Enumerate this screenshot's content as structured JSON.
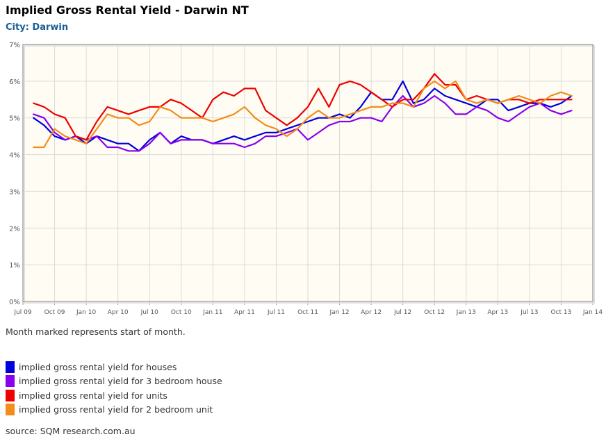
{
  "header": {
    "title": "Implied Gross Rental Yield - Darwin NT",
    "subtitle": "City: Darwin"
  },
  "note": "Month marked represents start of month.",
  "source": "source: SQM research.com.au",
  "chart_data": {
    "type": "line",
    "title": "Implied Gross Rental Yield - Darwin NT",
    "subtitle": "City: Darwin",
    "xlabel": "",
    "ylabel": "",
    "x_ticks": [
      "Jul 09",
      "Oct 09",
      "Jan 10",
      "Apr 10",
      "Jul 10",
      "Oct 10",
      "Jan 11",
      "Apr 11",
      "Jul 11",
      "Oct 11",
      "Jan 12",
      "Apr 12",
      "Jul 12",
      "Oct 12",
      "Jan 13",
      "Apr 13",
      "Jul 13",
      "Oct 13",
      "Jan 14"
    ],
    "y_ticks": [
      "0%",
      "1%",
      "2%",
      "3%",
      "4%",
      "5%",
      "6%",
      "7%"
    ],
    "xlim": [
      "Jul 09",
      "Jan 14"
    ],
    "ylim": [
      0,
      7
    ],
    "grid": true,
    "legend": "bottom",
    "x": [
      "Aug 09",
      "Sep 09",
      "Oct 09",
      "Nov 09",
      "Dec 09",
      "Jan 10",
      "Feb 10",
      "Mar 10",
      "Apr 10",
      "May 10",
      "Jun 10",
      "Jul 10",
      "Aug 10",
      "Sep 10",
      "Oct 10",
      "Nov 10",
      "Dec 10",
      "Jan 11",
      "Feb 11",
      "Mar 11",
      "Apr 11",
      "May 11",
      "Jun 11",
      "Jul 11",
      "Aug 11",
      "Sep 11",
      "Oct 11",
      "Nov 11",
      "Dec 11",
      "Jan 12",
      "Feb 12",
      "Mar 12",
      "Apr 12",
      "May 12",
      "Jun 12",
      "Jul 12",
      "Aug 12",
      "Sep 12",
      "Oct 12",
      "Nov 12",
      "Dec 12",
      "Jan 13",
      "Feb 13",
      "Mar 13",
      "Apr 13",
      "May 13",
      "Jun 13",
      "Jul 13",
      "Aug 13",
      "Sep 13",
      "Oct 13",
      "Nov 13"
    ],
    "series": [
      {
        "name": "implied gross rental yield for houses",
        "color": "#0000dd",
        "values": [
          5.0,
          4.8,
          4.5,
          4.4,
          4.5,
          4.3,
          4.5,
          4.4,
          4.3,
          4.3,
          4.1,
          4.4,
          4.6,
          4.3,
          4.5,
          4.4,
          4.4,
          4.3,
          4.4,
          4.5,
          4.4,
          4.5,
          4.6,
          4.6,
          4.7,
          4.8,
          4.9,
          5.0,
          5.0,
          5.1,
          5.0,
          5.3,
          5.7,
          5.5,
          5.5,
          6.0,
          5.4,
          5.5,
          5.8,
          5.6,
          5.5,
          5.4,
          5.3,
          5.5,
          5.5,
          5.2,
          5.3,
          5.4,
          5.4,
          5.3,
          5.4,
          5.6
        ]
      },
      {
        "name": "implied gross rental yield for 3 bedroom house",
        "color": "#8800ee",
        "values": [
          5.1,
          5.0,
          4.6,
          4.4,
          4.5,
          4.4,
          4.5,
          4.2,
          4.2,
          4.1,
          4.1,
          4.3,
          4.6,
          4.3,
          4.4,
          4.4,
          4.4,
          4.3,
          4.3,
          4.3,
          4.2,
          4.3,
          4.5,
          4.5,
          4.6,
          4.7,
          4.4,
          4.6,
          4.8,
          4.9,
          4.9,
          5.0,
          5.0,
          4.9,
          5.3,
          5.6,
          5.3,
          5.4,
          5.6,
          5.4,
          5.1,
          5.1,
          5.3,
          5.2,
          5.0,
          4.9,
          5.1,
          5.3,
          5.4,
          5.2,
          5.1,
          5.2
        ]
      },
      {
        "name": "implied gross rental yield for units",
        "color": "#ee0000",
        "values": [
          5.4,
          5.3,
          5.1,
          5.0,
          4.5,
          4.4,
          4.9,
          5.3,
          5.2,
          5.1,
          5.2,
          5.3,
          5.3,
          5.5,
          5.4,
          5.2,
          5.0,
          5.5,
          5.7,
          5.6,
          5.8,
          5.8,
          5.2,
          5.0,
          4.8,
          5.0,
          5.3,
          5.8,
          5.3,
          5.9,
          6.0,
          5.9,
          5.7,
          5.5,
          5.3,
          5.5,
          5.5,
          5.8,
          6.2,
          5.9,
          5.9,
          5.5,
          5.6,
          5.5,
          5.4,
          5.5,
          5.5,
          5.4,
          5.5,
          5.5,
          5.5,
          5.5
        ]
      },
      {
        "name": "implied gross rental yield for 2 bedroom unit",
        "color": "#f28c1a",
        "values": [
          4.2,
          4.2,
          4.7,
          4.5,
          4.4,
          4.3,
          4.7,
          5.1,
          5.0,
          5.0,
          4.8,
          4.9,
          5.3,
          5.2,
          5.0,
          5.0,
          5.0,
          4.9,
          5.0,
          5.1,
          5.3,
          5.0,
          4.8,
          4.7,
          4.5,
          4.7,
          5.0,
          5.2,
          5.0,
          5.0,
          5.1,
          5.2,
          5.3,
          5.3,
          5.4,
          5.4,
          5.3,
          5.8,
          6.0,
          5.8,
          6.0,
          5.5,
          5.4,
          5.5,
          5.4,
          5.5,
          5.6,
          5.5,
          5.4,
          5.6,
          5.7,
          5.6
        ]
      }
    ]
  }
}
